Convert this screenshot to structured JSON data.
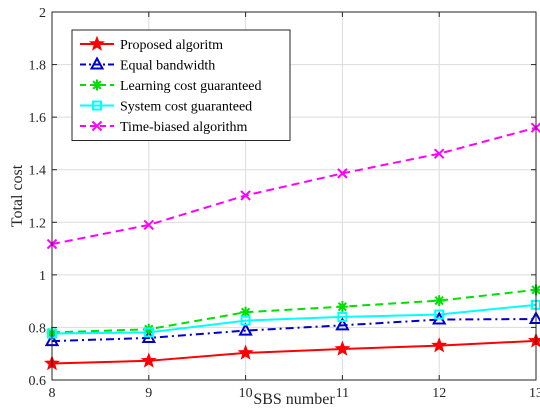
{
  "chart_data": {
    "type": "line",
    "title": "",
    "xlabel": "SBS number",
    "ylabel": "Total cost",
    "x": [
      8,
      9,
      10,
      11,
      12,
      13
    ],
    "xlim": [
      8,
      13
    ],
    "ylim": [
      0.6,
      2
    ],
    "xticks": [
      "8",
      "9",
      "10",
      "11",
      "12",
      "13"
    ],
    "yticks": [
      "0.6",
      "0.8",
      "1",
      "1.2",
      "1.4",
      "1.6",
      "1.8",
      "2"
    ],
    "grid": true,
    "legend_position": "top-left",
    "series": [
      {
        "name": "Proposed algoritm",
        "values": [
          0.663,
          0.673,
          0.703,
          0.718,
          0.731,
          0.749
        ],
        "color": "#ff0000",
        "dash": "solid",
        "marker": "star"
      },
      {
        "name": "Equal bandwidth",
        "values": [
          0.748,
          0.76,
          0.788,
          0.808,
          0.83,
          0.832
        ],
        "color": "#0000cc",
        "dash": "dashdot",
        "marker": "triangle"
      },
      {
        "name": "Learning cost guaranteed",
        "values": [
          0.781,
          0.793,
          0.858,
          0.879,
          0.902,
          0.943
        ],
        "color": "#00e000",
        "dash": "dashed",
        "marker": "asterisk"
      },
      {
        "name": "System cost guaranteed",
        "values": [
          0.777,
          0.781,
          0.826,
          0.84,
          0.849,
          0.886
        ],
        "color": "#00ffff",
        "dash": "solid",
        "marker": "square"
      },
      {
        "name": "Time-biased algorithm",
        "values": [
          1.117,
          1.19,
          1.302,
          1.386,
          1.461,
          1.56
        ],
        "color": "#ff00ff",
        "dash": "dashed",
        "marker": "x"
      }
    ]
  }
}
